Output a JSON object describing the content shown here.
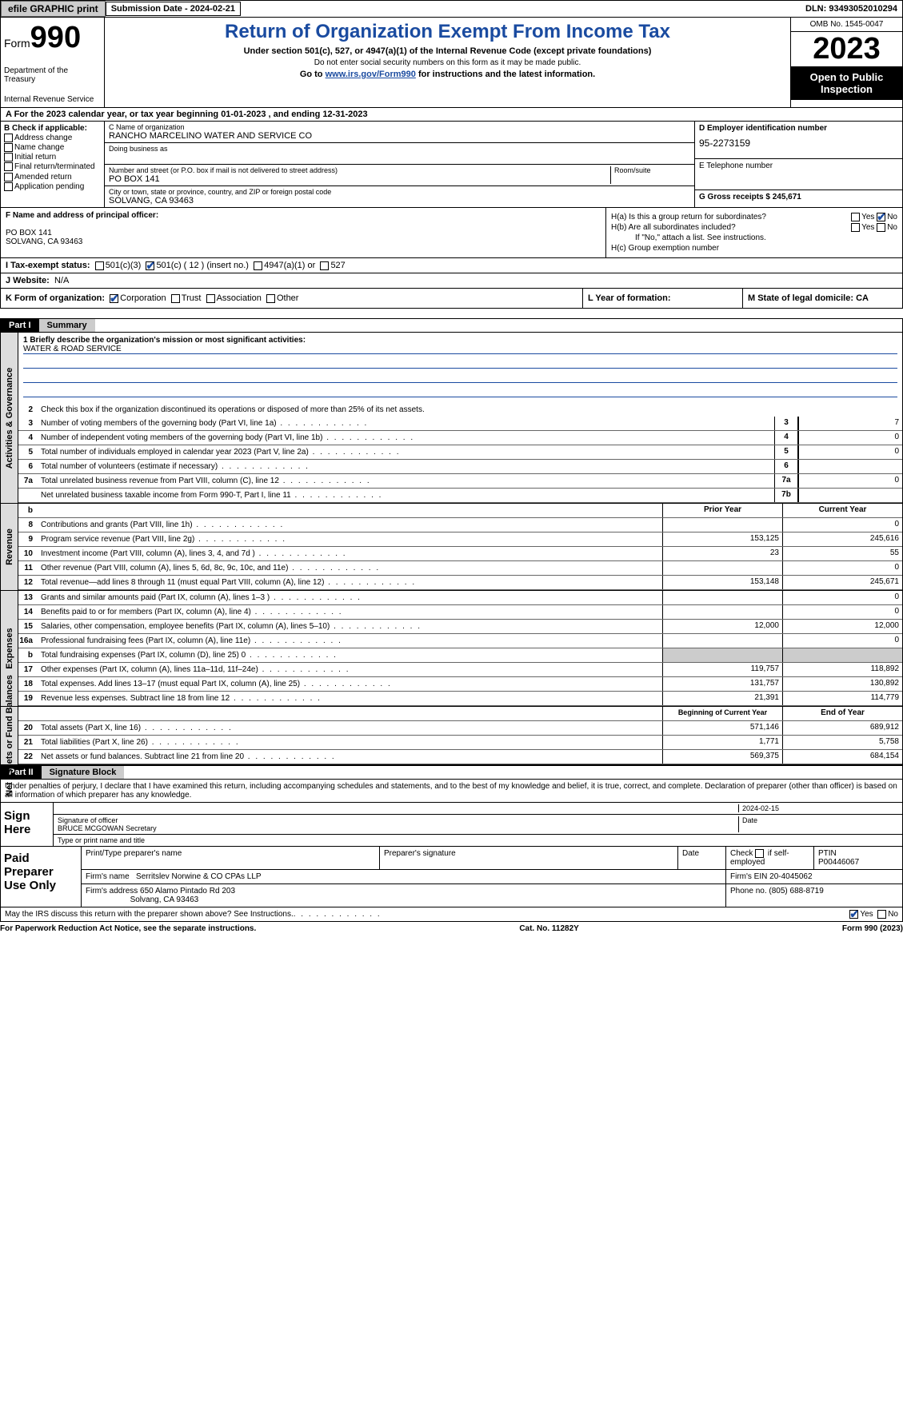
{
  "topbar": {
    "efile": "efile GRAPHIC print",
    "sub_label": "Submission Date - 2024-02-21",
    "dln": "DLN: 93493052010294"
  },
  "header": {
    "form_word": "Form",
    "form_num": "990",
    "dept": "Department of the Treasury",
    "irs": "Internal Revenue Service",
    "title": "Return of Organization Exempt From Income Tax",
    "sub1": "Under section 501(c), 527, or 4947(a)(1) of the Internal Revenue Code (except private foundations)",
    "sub2": "Do not enter social security numbers on this form as it may be made public.",
    "sub3_a": "Go to ",
    "sub3_link": "www.irs.gov/Form990",
    "sub3_b": " for instructions and the latest information.",
    "omb": "OMB No. 1545-0047",
    "year": "2023",
    "open": "Open to Public Inspection"
  },
  "rowA": "A For the 2023 calendar year, or tax year beginning 01-01-2023    , and ending 12-31-2023",
  "colB": {
    "header": "B Check if applicable:",
    "items": [
      "Address change",
      "Name change",
      "Initial return",
      "Final return/terminated",
      "Amended return",
      "Application pending"
    ]
  },
  "colC": {
    "name_lbl": "C Name of organization",
    "name": "RANCHO MARCELINO WATER AND SERVICE CO",
    "dba_lbl": "Doing business as",
    "addr_lbl": "Number and street (or P.O. box if mail is not delivered to street address)",
    "room_lbl": "Room/suite",
    "addr": "PO BOX 141",
    "city_lbl": "City or town, state or province, country, and ZIP or foreign postal code",
    "city": "SOLVANG, CA  93463"
  },
  "colD": {
    "ein_lbl": "D Employer identification number",
    "ein": "95-2273159",
    "tel_lbl": "E Telephone number",
    "gross_lbl": "G Gross receipts $ 245,671"
  },
  "F": {
    "label": "F  Name and address of principal officer:",
    "addr1": "PO BOX 141",
    "addr2": "SOLVANG, CA  93463"
  },
  "H": {
    "a": "H(a)  Is this a group return for subordinates?",
    "b": "H(b)  Are all subordinates included?",
    "b2": "If \"No,\" attach a list. See instructions.",
    "c": "H(c)  Group exemption number",
    "yes": "Yes",
    "no": "No"
  },
  "I": {
    "label": "I   Tax-exempt status:",
    "opts": [
      "501(c)(3)",
      "501(c) ( 12 ) (insert no.)",
      "4947(a)(1) or",
      "527"
    ]
  },
  "J": {
    "label": "J   Website:",
    "val": "N/A"
  },
  "K": {
    "label": "K Form of organization:",
    "opts": [
      "Corporation",
      "Trust",
      "Association",
      "Other"
    ]
  },
  "L": "L Year of formation:",
  "M": "M State of legal domicile: CA",
  "part1": {
    "num": "Part I",
    "title": "Summary"
  },
  "gov": {
    "title": "Activities & Governance",
    "l1": "1   Briefly describe the organization's mission or most significant activities:",
    "l1v": "WATER & ROAD SERVICE",
    "l2": "Check this box      if the organization discontinued its operations or disposed of more than 25% of its net assets.",
    "rows": [
      {
        "n": "3",
        "t": "Number of voting members of the governing body (Part VI, line 1a)",
        "b": "3",
        "v": "7"
      },
      {
        "n": "4",
        "t": "Number of independent voting members of the governing body (Part VI, line 1b)",
        "b": "4",
        "v": "0"
      },
      {
        "n": "5",
        "t": "Total number of individuals employed in calendar year 2023 (Part V, line 2a)",
        "b": "5",
        "v": "0"
      },
      {
        "n": "6",
        "t": "Total number of volunteers (estimate if necessary)",
        "b": "6",
        "v": ""
      },
      {
        "n": "7a",
        "t": "Total unrelated business revenue from Part VIII, column (C), line 12",
        "b": "7a",
        "v": "0"
      },
      {
        "n": "",
        "t": "Net unrelated business taxable income from Form 990-T, Part I, line 11",
        "b": "7b",
        "v": ""
      }
    ]
  },
  "rev": {
    "title": "Revenue",
    "hdr_prior": "Prior Year",
    "hdr_curr": "Current Year",
    "rows": [
      {
        "n": "8",
        "t": "Contributions and grants (Part VIII, line 1h)",
        "p": "",
        "c": "0"
      },
      {
        "n": "9",
        "t": "Program service revenue (Part VIII, line 2g)",
        "p": "153,125",
        "c": "245,616"
      },
      {
        "n": "10",
        "t": "Investment income (Part VIII, column (A), lines 3, 4, and 7d )",
        "p": "23",
        "c": "55"
      },
      {
        "n": "11",
        "t": "Other revenue (Part VIII, column (A), lines 5, 6d, 8c, 9c, 10c, and 11e)",
        "p": "",
        "c": "0"
      },
      {
        "n": "12",
        "t": "Total revenue—add lines 8 through 11 (must equal Part VIII, column (A), line 12)",
        "p": "153,148",
        "c": "245,671"
      }
    ]
  },
  "exp": {
    "title": "Expenses",
    "rows": [
      {
        "n": "13",
        "t": "Grants and similar amounts paid (Part IX, column (A), lines 1–3 )",
        "p": "",
        "c": "0"
      },
      {
        "n": "14",
        "t": "Benefits paid to or for members (Part IX, column (A), line 4)",
        "p": "",
        "c": "0"
      },
      {
        "n": "15",
        "t": "Salaries, other compensation, employee benefits (Part IX, column (A), lines 5–10)",
        "p": "12,000",
        "c": "12,000"
      },
      {
        "n": "16a",
        "t": "Professional fundraising fees (Part IX, column (A), line 11e)",
        "p": "",
        "c": "0"
      },
      {
        "n": "b",
        "t": "Total fundraising expenses (Part IX, column (D), line 25) 0",
        "p": "GRAY",
        "c": "GRAY"
      },
      {
        "n": "17",
        "t": "Other expenses (Part IX, column (A), lines 11a–11d, 11f–24e)",
        "p": "119,757",
        "c": "118,892"
      },
      {
        "n": "18",
        "t": "Total expenses. Add lines 13–17 (must equal Part IX, column (A), line 25)",
        "p": "131,757",
        "c": "130,892"
      },
      {
        "n": "19",
        "t": "Revenue less expenses. Subtract line 18 from line 12",
        "p": "21,391",
        "c": "114,779"
      }
    ]
  },
  "net": {
    "title": "Net Assets or Fund Balances",
    "hdr_beg": "Beginning of Current Year",
    "hdr_end": "End of Year",
    "rows": [
      {
        "n": "20",
        "t": "Total assets (Part X, line 16)",
        "p": "571,146",
        "c": "689,912"
      },
      {
        "n": "21",
        "t": "Total liabilities (Part X, line 26)",
        "p": "1,771",
        "c": "5,758"
      },
      {
        "n": "22",
        "t": "Net assets or fund balances. Subtract line 21 from line 20",
        "p": "569,375",
        "c": "684,154"
      }
    ]
  },
  "part2": {
    "num": "Part II",
    "title": "Signature Block"
  },
  "sig_text": "Under penalties of perjury, I declare that I have examined this return, including accompanying schedules and statements, and to the best of my knowledge and belief, it is true, correct, and complete. Declaration of preparer (other than officer) is based on all information of which preparer has any knowledge.",
  "sign": {
    "here": "Sign Here",
    "date": "2024-02-15",
    "sig_lbl": "Signature of officer",
    "date_lbl": "Date",
    "name": "BRUCE MCGOWAN Secretary",
    "name_lbl": "Type or print name and title"
  },
  "paid": {
    "label": "Paid Preparer Use Only",
    "h1": "Print/Type preparer's name",
    "h2": "Preparer's signature",
    "h3": "Date",
    "h4_a": "Check",
    "h4_b": "if self-employed",
    "h5": "PTIN",
    "ptin": "P00446067",
    "firm_lbl": "Firm's name",
    "firm": "Serritslev Norwine & CO CPAs LLP",
    "ein_lbl": "Firm's EIN",
    "ein": "20-4045062",
    "addr_lbl": "Firm's address",
    "addr1": "650 Alamo Pintado Rd 203",
    "addr2": "Solvang, CA  93463",
    "phone_lbl": "Phone no.",
    "phone": "(805) 688-8719"
  },
  "discuss": "May the IRS discuss this return with the preparer shown above? See Instructions.",
  "footer": {
    "l": "For Paperwork Reduction Act Notice, see the separate instructions.",
    "m": "Cat. No. 11282Y",
    "r": "Form 990 (2023)"
  },
  "colors": {
    "accent": "#1a4ba0",
    "gray": "#cccccc"
  }
}
